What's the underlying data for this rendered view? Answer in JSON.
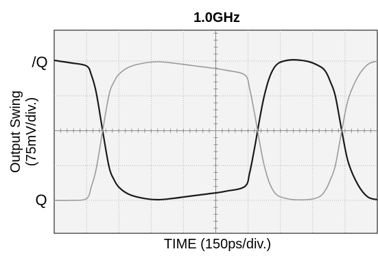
{
  "chart_data": {
    "type": "line",
    "title": "1.0GHz",
    "xlabel": "TIME (150ps/div.)",
    "ylabel_line1": "Output Swing",
    "ylabel_line2": "(75mV/div.)",
    "y_tick_labels": {
      "top": "/Q",
      "bottom": "Q"
    },
    "xlim": [
      0,
      10
    ],
    "ylim": [
      0,
      5
    ],
    "grid": true,
    "grid_divisions": {
      "x": 10,
      "y": 5
    },
    "series": [
      {
        "color": "#1a1a1a",
        "x": [
          0.0,
          0.5,
          1.0,
          1.15,
          1.3,
          1.5,
          1.7,
          1.85,
          2.0,
          2.3,
          2.7,
          3.2,
          3.7,
          4.2,
          4.7,
          5.3,
          5.9,
          6.05,
          6.2,
          6.5,
          6.8,
          7.2,
          7.8,
          8.2,
          8.4,
          8.55,
          8.7,
          8.9,
          9.1,
          9.4,
          9.7,
          10.0
        ],
        "values": [
          4.02,
          3.95,
          3.86,
          3.6,
          3.1,
          2.0,
          0.95,
          0.6,
          0.38,
          0.18,
          0.07,
          0.02,
          0.06,
          0.12,
          0.18,
          0.26,
          0.4,
          0.8,
          1.5,
          3.0,
          3.8,
          4.02,
          4.0,
          3.86,
          3.7,
          3.4,
          3.0,
          2.0,
          1.1,
          0.45,
          0.1,
          0.02
        ]
      },
      {
        "color": "#9a9a9a",
        "x": [
          0.0,
          0.5,
          1.0,
          1.15,
          1.3,
          1.5,
          1.7,
          1.85,
          2.0,
          2.3,
          2.7,
          3.2,
          3.7,
          4.2,
          4.7,
          5.3,
          5.9,
          6.05,
          6.2,
          6.5,
          6.8,
          7.2,
          7.8,
          8.2,
          8.4,
          8.55,
          8.7,
          8.9,
          9.1,
          9.4,
          9.7,
          10.0
        ],
        "values": [
          0.0,
          0.0,
          0.05,
          0.4,
          0.9,
          2.0,
          3.05,
          3.4,
          3.62,
          3.82,
          3.93,
          3.98,
          3.94,
          3.88,
          3.82,
          3.74,
          3.6,
          3.2,
          2.5,
          1.0,
          0.25,
          0.05,
          0.02,
          0.1,
          0.3,
          0.6,
          1.0,
          2.0,
          2.9,
          3.55,
          3.9,
          4.0
        ]
      }
    ]
  }
}
